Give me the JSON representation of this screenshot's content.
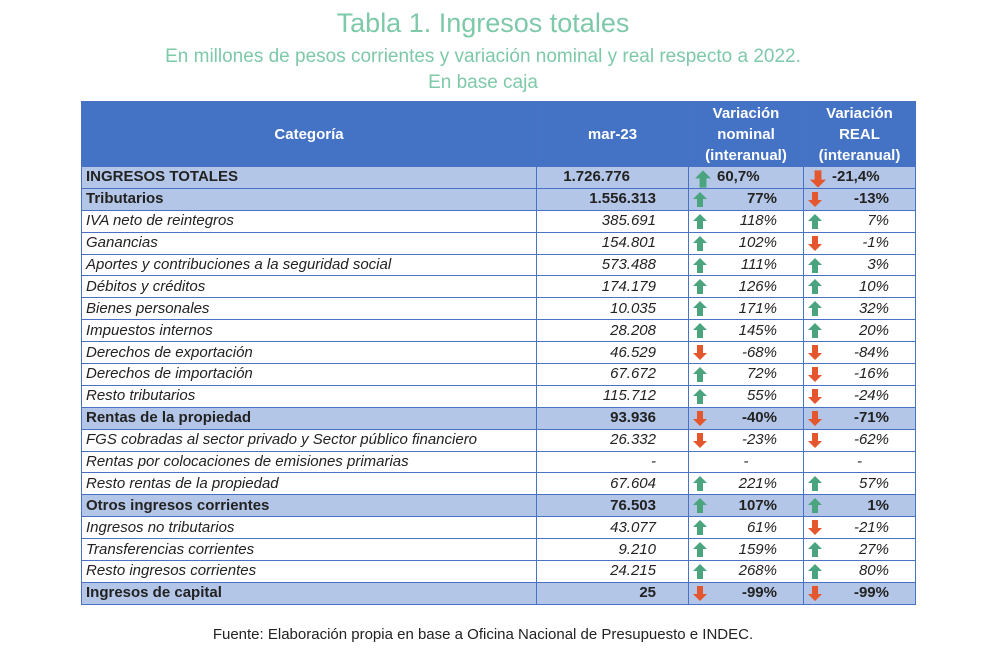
{
  "title": "Tabla 1. Ingresos totales",
  "subtitle_line1": "En millones de pesos corrientes y variación nominal y real respecto a 2022.",
  "subtitle_line2": "En base caja",
  "headers": {
    "category": "Categoría",
    "period": "mar-23",
    "nominal_line1": "Variación",
    "nominal_line2": "nominal",
    "nominal_line3": "(interanual)",
    "real_line1": "Variación",
    "real_line2": "REAL",
    "real_line3": "(interanual)"
  },
  "colors": {
    "up": "#4aa57f",
    "down": "#e4572e",
    "header_bg": "#4472c4",
    "highlight_bg": "#b4c6e7",
    "title": "#7dc9a8"
  },
  "rows": [
    {
      "style": "total",
      "name": "INGRESOS TOTALES",
      "value": "1.726.776",
      "nominal": "60,7%",
      "nominal_dir": "up",
      "real": "-21,4%",
      "real_dir": "down"
    },
    {
      "style": "bold",
      "name": "Tributarios",
      "value": "1.556.313",
      "nominal": "77%",
      "nominal_dir": "up",
      "real": "-13%",
      "real_dir": "down"
    },
    {
      "style": "normal",
      "name": "IVA neto de reintegros",
      "value": "385.691",
      "nominal": "118%",
      "nominal_dir": "up",
      "real": "7%",
      "real_dir": "up"
    },
    {
      "style": "normal",
      "name": "Ganancias",
      "value": "154.801",
      "nominal": "102%",
      "nominal_dir": "up",
      "real": "-1%",
      "real_dir": "down"
    },
    {
      "style": "normal",
      "name": "Aportes y contribuciones a la seguridad social",
      "value": "573.488",
      "nominal": "111%",
      "nominal_dir": "up",
      "real": "3%",
      "real_dir": "up"
    },
    {
      "style": "normal",
      "name": "Débitos y créditos",
      "value": "174.179",
      "nominal": "126%",
      "nominal_dir": "up",
      "real": "10%",
      "real_dir": "up"
    },
    {
      "style": "normal",
      "name": "Bienes personales",
      "value": "10.035",
      "nominal": "171%",
      "nominal_dir": "up",
      "real": "32%",
      "real_dir": "up"
    },
    {
      "style": "normal",
      "name": "Impuestos internos",
      "value": "28.208",
      "nominal": "145%",
      "nominal_dir": "up",
      "real": "20%",
      "real_dir": "up"
    },
    {
      "style": "normal",
      "name": "Derechos de exportación",
      "value": "46.529",
      "nominal": "-68%",
      "nominal_dir": "down",
      "real": "-84%",
      "real_dir": "down"
    },
    {
      "style": "normal",
      "name": "Derechos de importación",
      "value": "67.672",
      "nominal": "72%",
      "nominal_dir": "up",
      "real": "-16%",
      "real_dir": "down"
    },
    {
      "style": "normal",
      "name": "Resto tributarios",
      "value": "115.712",
      "nominal": "55%",
      "nominal_dir": "up",
      "real": "-24%",
      "real_dir": "down"
    },
    {
      "style": "bold",
      "name": "Rentas de la propiedad",
      "value": "93.936",
      "nominal": "-40%",
      "nominal_dir": "down",
      "real": "-71%",
      "real_dir": "down"
    },
    {
      "style": "normal",
      "name": "FGS cobradas al sector privado y Sector público financiero",
      "value": "26.332",
      "nominal": "-23%",
      "nominal_dir": "down",
      "real": "-62%",
      "real_dir": "down"
    },
    {
      "style": "normal",
      "name": "Rentas por colocaciones de emisiones primarias",
      "value": "-",
      "nominal": "-",
      "nominal_dir": "none",
      "real": "-",
      "real_dir": "none"
    },
    {
      "style": "normal",
      "name": "Resto rentas de la propiedad",
      "value": "67.604",
      "nominal": "221%",
      "nominal_dir": "up",
      "real": "57%",
      "real_dir": "up"
    },
    {
      "style": "bold",
      "name": "Otros ingresos corrientes",
      "value": "76.503",
      "nominal": "107%",
      "nominal_dir": "up",
      "real": "1%",
      "real_dir": "up"
    },
    {
      "style": "normal",
      "name": "Ingresos no tributarios",
      "value": "43.077",
      "nominal": "61%",
      "nominal_dir": "up",
      "real": "-21%",
      "real_dir": "down"
    },
    {
      "style": "normal",
      "name": "Transferencias corrientes",
      "value": "9.210",
      "nominal": "159%",
      "nominal_dir": "up",
      "real": "27%",
      "real_dir": "up"
    },
    {
      "style": "normal",
      "name": "Resto ingresos corrientes",
      "value": "24.215",
      "nominal": "268%",
      "nominal_dir": "up",
      "real": "80%",
      "real_dir": "up"
    },
    {
      "style": "bold",
      "name": "Ingresos de capital",
      "value": "25",
      "nominal": "-99%",
      "nominal_dir": "down",
      "real": "-99%",
      "real_dir": "down"
    }
  ],
  "footer": "Fuente: Elaboración propia en base a Oficina Nacional de Presupuesto e INDEC."
}
